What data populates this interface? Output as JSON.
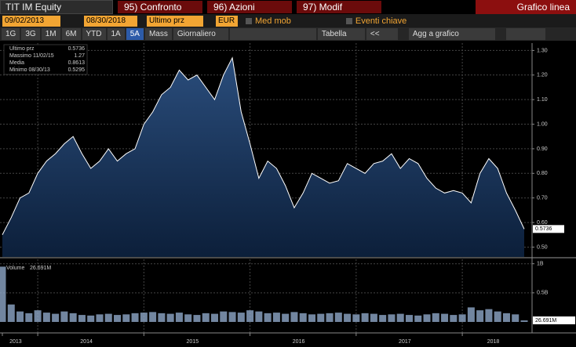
{
  "toolbar": {
    "security": "TIT IM Equity",
    "menus": [
      "95) Confronto",
      "96) Azioni",
      "97) Modif"
    ],
    "view": "Grafico linea",
    "start_date": "09/02/2013",
    "end_date": "08/30/2018",
    "field": "Ultimo prz",
    "currency": "EUR",
    "options": [
      "Med mob",
      "Eventi chiave"
    ],
    "periods": [
      "1G",
      "3G",
      "1M",
      "6M",
      "YTD",
      "1A",
      "5A",
      "Mass"
    ],
    "frequency": "Giornaliero",
    "table": "Tabella",
    "back": "<<",
    "add": "Agg a grafico"
  },
  "chart_data": [
    {
      "type": "area",
      "categories": [
        "2013",
        null,
        null,
        null,
        "2014",
        null,
        null,
        null,
        null,
        null,
        null,
        null,
        null,
        null,
        null,
        null,
        "2015",
        null,
        null,
        null,
        null,
        null,
        null,
        null,
        null,
        null,
        null,
        null,
        "2016",
        null,
        null,
        null,
        null,
        null,
        null,
        null,
        null,
        null,
        null,
        null,
        "2017",
        null,
        null,
        null,
        null,
        null,
        null,
        null,
        null,
        null,
        null,
        null,
        "2018",
        null,
        null,
        null,
        null,
        null,
        null,
        null
      ],
      "series": [
        {
          "name": "Ultimo prz",
          "color": "#ffffff",
          "values": [
            0.55,
            0.62,
            0.7,
            0.72,
            0.8,
            0.85,
            0.88,
            0.92,
            0.95,
            0.88,
            0.82,
            0.85,
            0.9,
            0.85,
            0.88,
            0.9,
            1.0,
            1.05,
            1.12,
            1.15,
            1.22,
            1.18,
            1.2,
            1.15,
            1.1,
            1.2,
            1.27,
            1.05,
            0.92,
            0.78,
            0.85,
            0.82,
            0.75,
            0.66,
            0.72,
            0.8,
            0.78,
            0.76,
            0.77,
            0.84,
            0.82,
            0.8,
            0.84,
            0.85,
            0.88,
            0.82,
            0.86,
            0.84,
            0.78,
            0.74,
            0.72,
            0.73,
            0.72,
            0.68,
            0.8,
            0.86,
            0.82,
            0.72,
            0.65,
            0.5736
          ]
        }
      ],
      "stats": [
        {
          "name": "Ultimo prz",
          "value": 0.5736
        },
        {
          "name": "Massimo 11/02/15",
          "value": 1.27
        },
        {
          "name": "Media",
          "value": 0.8613
        },
        {
          "name": "Minimo 08/30/13",
          "value": 0.5295
        }
      ],
      "ylim": [
        0.46,
        1.33
      ],
      "yticks": [
        {
          "value": 0.5,
          "label": "0.50"
        },
        {
          "value": 0.6,
          "label": "0.60"
        },
        {
          "value": 0.7,
          "label": "0.70"
        },
        {
          "value": 0.8,
          "label": "0.80"
        },
        {
          "value": 0.9,
          "label": "0.90"
        },
        {
          "value": 1.0,
          "label": "1.00"
        },
        {
          "value": 1.1,
          "label": "1.10"
        },
        {
          "value": 1.2,
          "label": "1.20"
        },
        {
          "value": 1.3,
          "label": "1.30"
        }
      ],
      "grid": true
    },
    {
      "type": "bar",
      "series": [
        {
          "name": "Volume",
          "color": "#8fa8c8",
          "values": [
            950,
            300,
            180,
            150,
            200,
            160,
            140,
            180,
            150,
            120,
            110,
            130,
            140,
            120,
            130,
            150,
            160,
            170,
            150,
            140,
            160,
            130,
            120,
            150,
            140,
            180,
            170,
            160,
            200,
            180,
            150,
            160,
            140,
            170,
            150,
            130,
            140,
            150,
            160,
            140,
            130,
            150,
            140,
            120,
            130,
            140,
            120,
            110,
            130,
            150,
            140,
            120,
            130,
            250,
            200,
            220,
            180,
            150,
            130,
            26.691
          ]
        }
      ],
      "last_label": "26.691M",
      "ylim": [
        0,
        1090
      ],
      "yticks": [
        {
          "value": 500,
          "label": "0.5B"
        },
        {
          "value": 1000,
          "label": "1B"
        }
      ],
      "grid": true
    }
  ]
}
